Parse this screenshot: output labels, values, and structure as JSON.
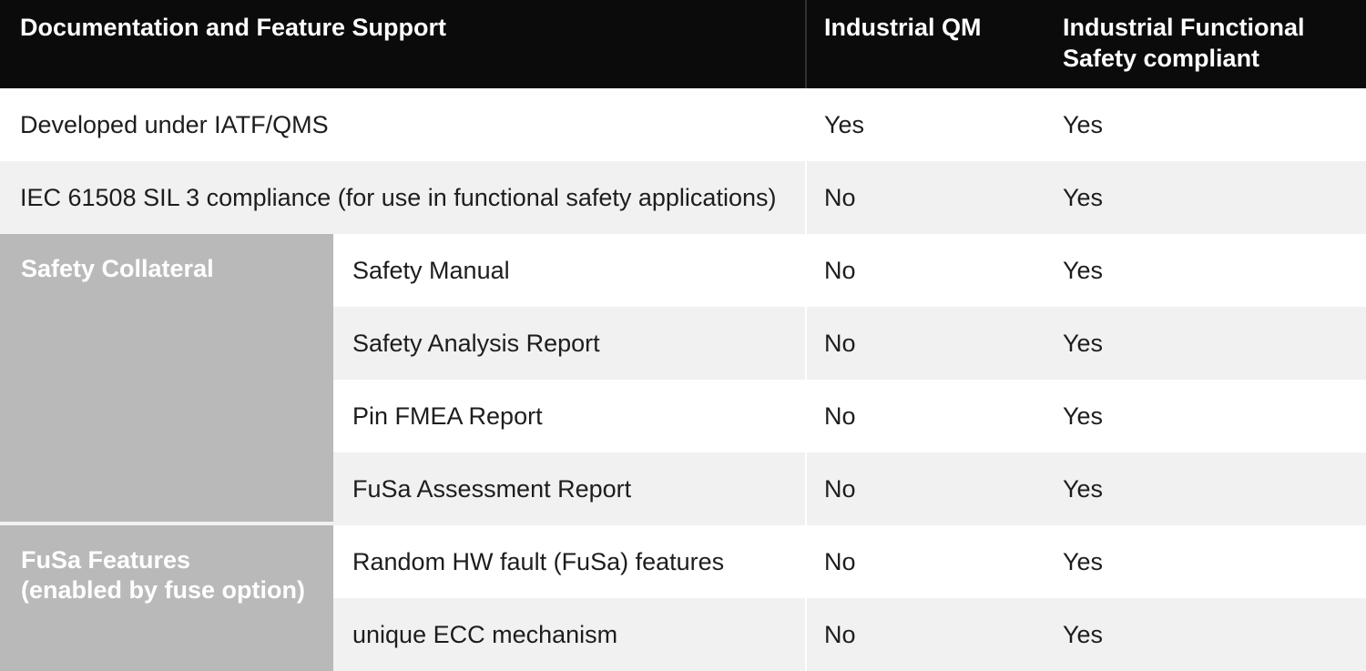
{
  "table": {
    "header": {
      "col_feature": "Documentation and Feature Support",
      "col_qm": "Industrial QM",
      "col_fusa_line1": "Industrial Functional",
      "col_fusa_line2": "Safety compliant"
    },
    "groups": [
      {
        "label": "Safety Collateral",
        "lines": [
          "Safety Collateral"
        ]
      },
      {
        "label": "FuSa Features (enabled by fuse option)",
        "lines": [
          "FuSa Features",
          "(enabled by fuse option)"
        ]
      }
    ],
    "rows": [
      {
        "group": "",
        "label": "Developed under IATF/QMS",
        "industrial_qm": "Yes",
        "industrial_fusa": "Yes"
      },
      {
        "group": "",
        "label": "IEC 61508 SIL 3 compliance (for use in functional safety applications)",
        "industrial_qm": "No",
        "industrial_fusa": "Yes"
      },
      {
        "group": "Safety Collateral",
        "label": "Safety Manual",
        "industrial_qm": "No",
        "industrial_fusa": "Yes"
      },
      {
        "group": "Safety Collateral",
        "label": "Safety Analysis Report",
        "industrial_qm": "No",
        "industrial_fusa": "Yes"
      },
      {
        "group": "Safety Collateral",
        "label": "Pin FMEA Report",
        "industrial_qm": "No",
        "industrial_fusa": "Yes"
      },
      {
        "group": "Safety Collateral",
        "label": "FuSa Assessment Report",
        "industrial_qm": "No",
        "industrial_fusa": "Yes"
      },
      {
        "group": "FuSa Features (enabled by fuse option)",
        "label": "Random HW fault (FuSa) features",
        "industrial_qm": "No",
        "industrial_fusa": "Yes"
      },
      {
        "group": "FuSa Features (enabled by fuse option)",
        "label": "unique ECC mechanism",
        "industrial_qm": "No",
        "industrial_fusa": "Yes"
      }
    ],
    "colors": {
      "header_bg": "#0b0b0b",
      "header_text": "#ffffff",
      "stripe_bg": "#f1f1f1",
      "group_bg": "#b9b9b9",
      "group_text": "#ffffff",
      "body_text": "#1d1d1f",
      "header_divider": "#323232",
      "body_divider": "#ffffff"
    }
  }
}
